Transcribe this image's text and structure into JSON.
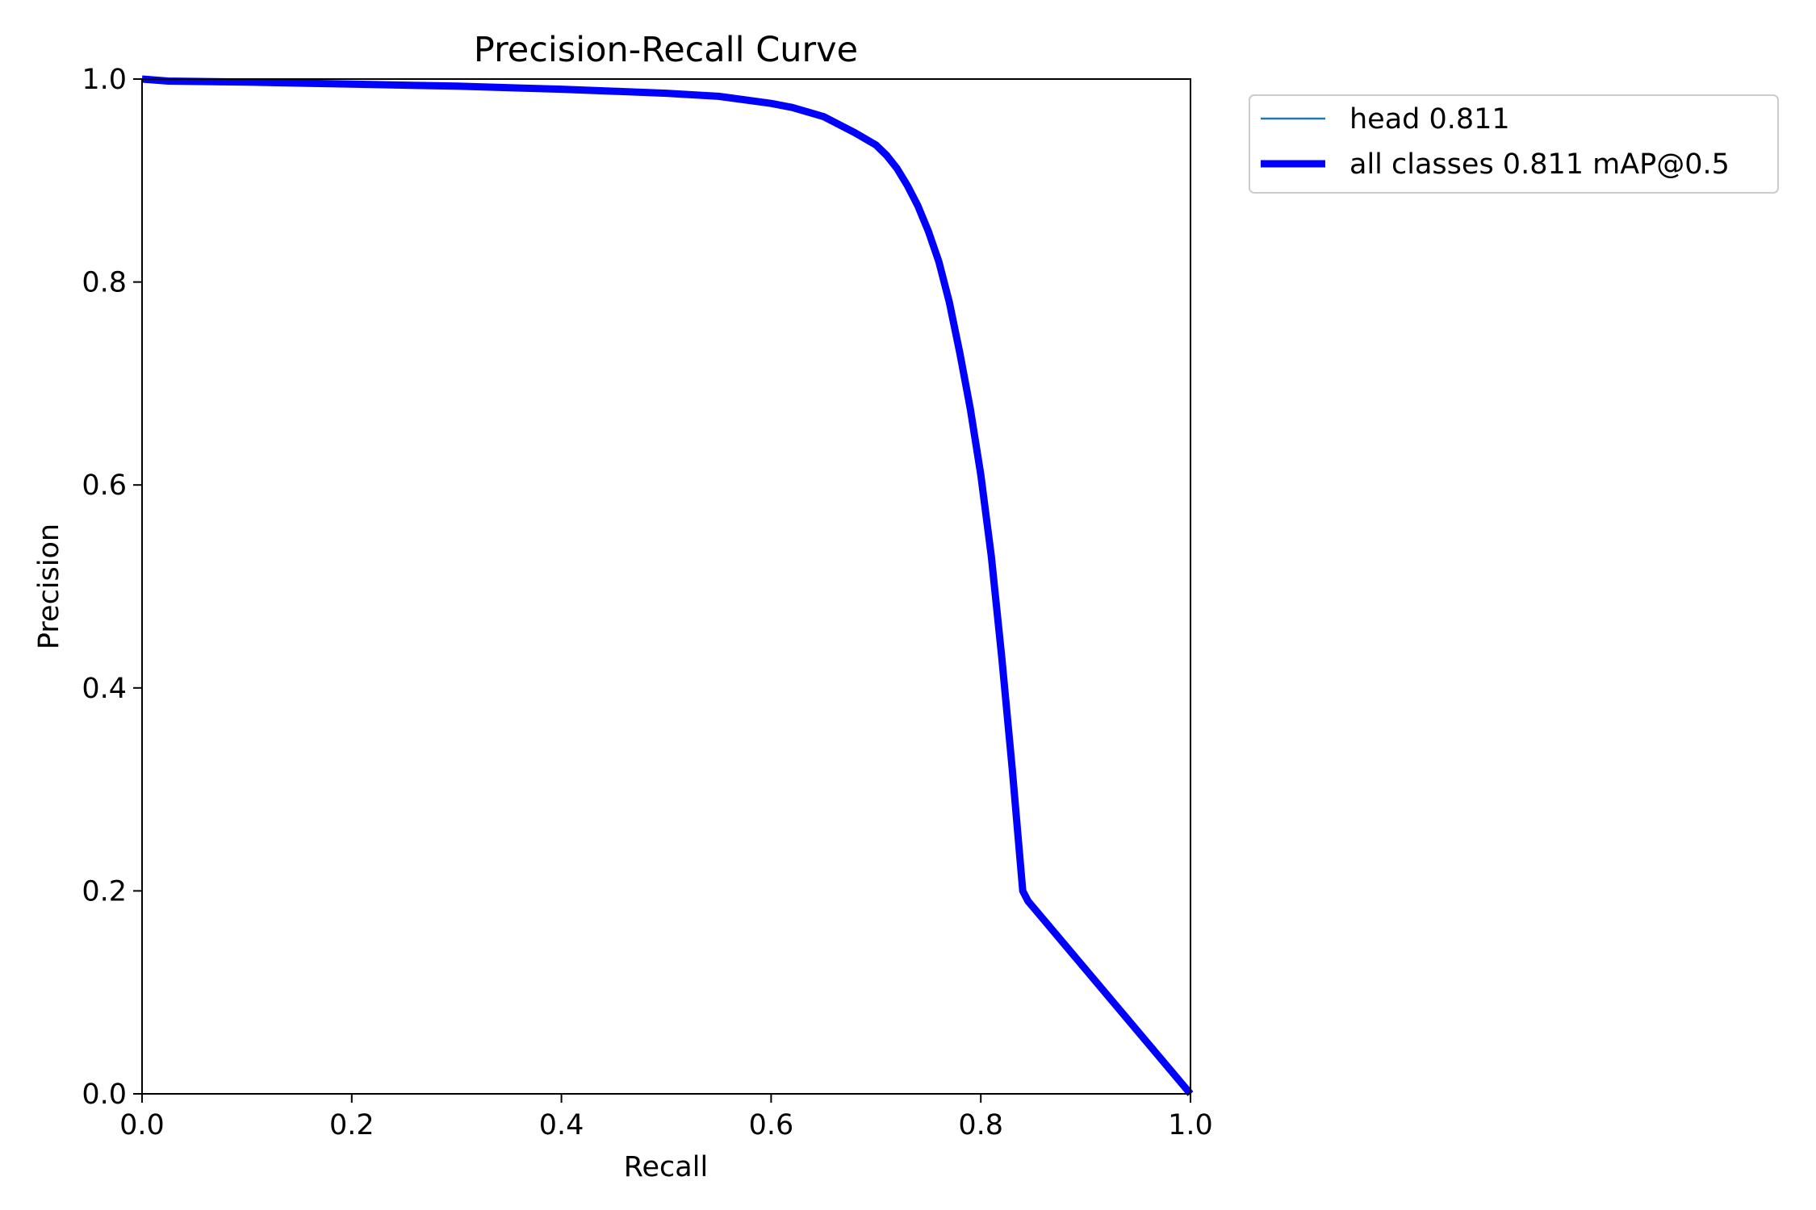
{
  "chart_data": {
    "type": "line",
    "title": "Precision-Recall Curve",
    "xlabel": "Recall",
    "ylabel": "Precision",
    "xlim": [
      0.0,
      1.0
    ],
    "ylim": [
      0.0,
      1.0
    ],
    "xticks": [
      "0.0",
      "0.2",
      "0.4",
      "0.6",
      "0.8",
      "1.0"
    ],
    "yticks": [
      "0.0",
      "0.2",
      "0.4",
      "0.6",
      "0.8",
      "1.0"
    ],
    "grid": false,
    "legend_position": "outside-upper-right",
    "series": [
      {
        "name": "head 0.811",
        "color": "#1f77b4",
        "line_style": "thin",
        "x": [
          0.0,
          0.025,
          0.1,
          0.2,
          0.3,
          0.4,
          0.45,
          0.5,
          0.55,
          0.6,
          0.62,
          0.65,
          0.68,
          0.7,
          0.71,
          0.72,
          0.73,
          0.74,
          0.75,
          0.76,
          0.77,
          0.78,
          0.79,
          0.8,
          0.81,
          0.82,
          0.83,
          0.84,
          0.845,
          1.0
        ],
        "y": [
          1.0,
          0.998,
          0.997,
          0.995,
          0.993,
          0.99,
          0.988,
          0.986,
          0.983,
          0.976,
          0.972,
          0.963,
          0.947,
          0.935,
          0.925,
          0.912,
          0.895,
          0.875,
          0.85,
          0.82,
          0.78,
          0.73,
          0.675,
          0.61,
          0.53,
          0.43,
          0.32,
          0.2,
          0.19,
          0.0
        ]
      },
      {
        "name": "all classes 0.811 mAP@0.5",
        "color": "#0000ff",
        "line_style": "thick",
        "x": [
          0.0,
          0.025,
          0.1,
          0.2,
          0.3,
          0.4,
          0.45,
          0.5,
          0.55,
          0.6,
          0.62,
          0.65,
          0.68,
          0.7,
          0.71,
          0.72,
          0.73,
          0.74,
          0.75,
          0.76,
          0.77,
          0.78,
          0.79,
          0.8,
          0.81,
          0.82,
          0.83,
          0.84,
          0.845,
          1.0
        ],
        "y": [
          1.0,
          0.998,
          0.997,
          0.995,
          0.993,
          0.99,
          0.988,
          0.986,
          0.983,
          0.976,
          0.972,
          0.963,
          0.947,
          0.935,
          0.925,
          0.912,
          0.895,
          0.875,
          0.85,
          0.82,
          0.78,
          0.73,
          0.675,
          0.61,
          0.53,
          0.43,
          0.32,
          0.2,
          0.19,
          0.0
        ]
      }
    ]
  }
}
